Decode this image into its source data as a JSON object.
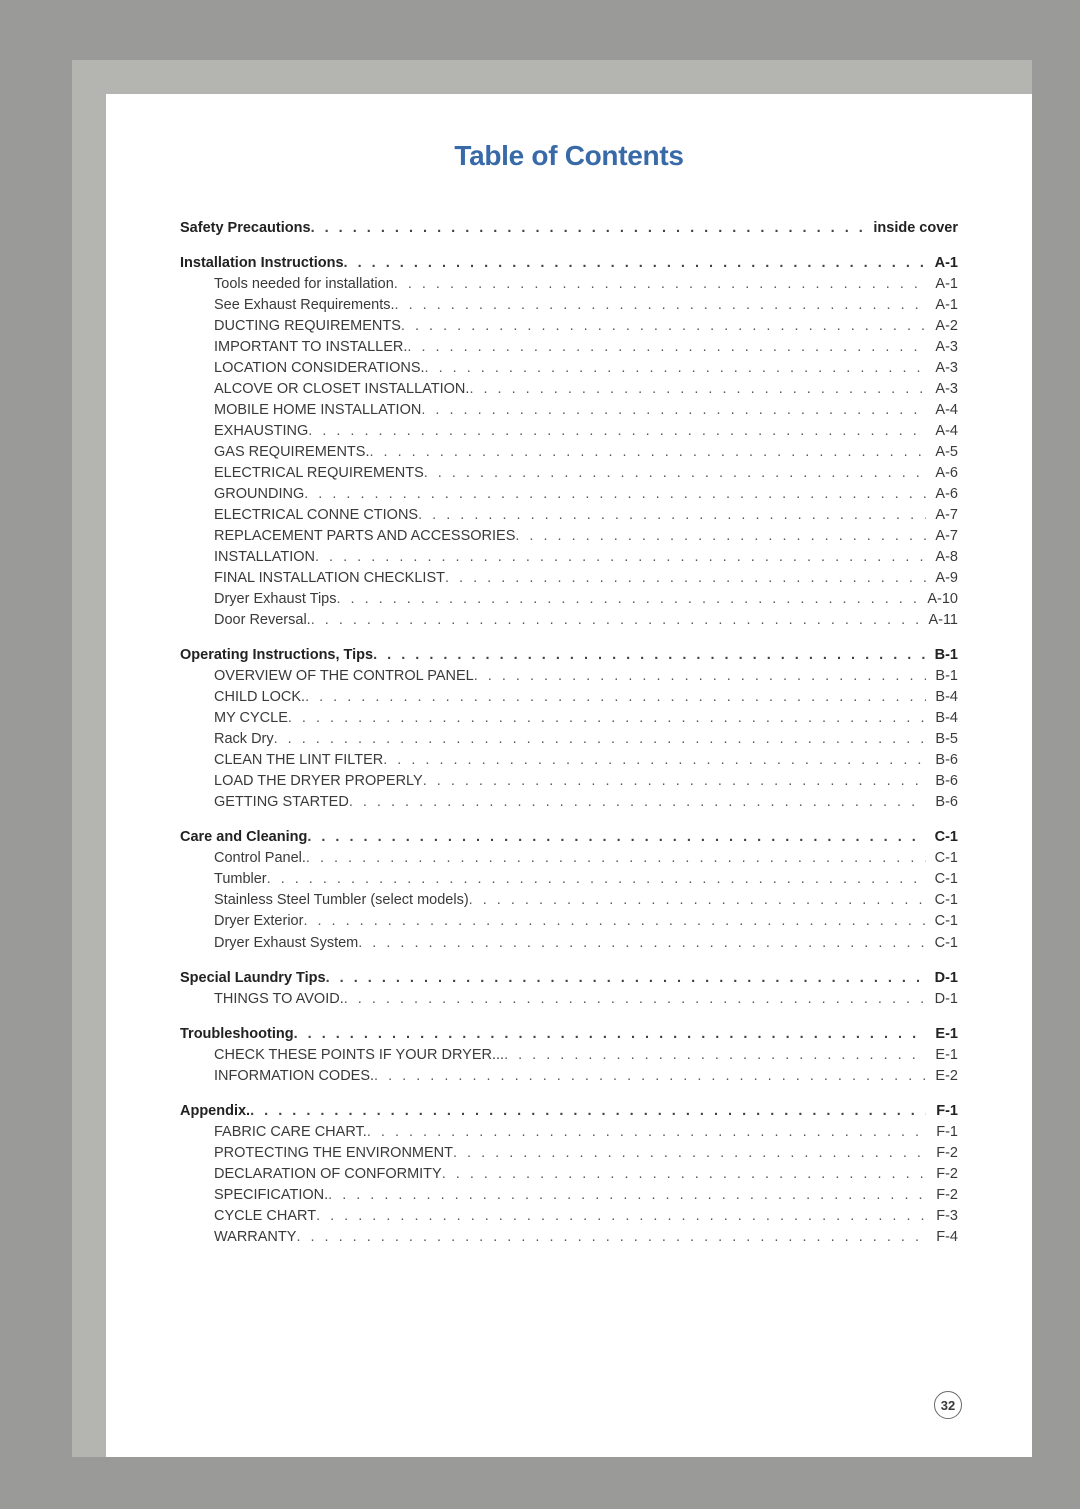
{
  "title": "Table of Contents",
  "title_color": "#386aa8",
  "title_fontsize": 28,
  "body_fontsize": 14.5,
  "background_color": "#9a9a98",
  "band_color": "#b4b4b0",
  "page_color": "#ffffff",
  "text_color": "#3a3a3a",
  "page_number": "32",
  "sections": [
    {
      "header": {
        "label": "Safety Precautions",
        "page": "inside cover"
      },
      "items": []
    },
    {
      "header": {
        "label": "Installation Instructions",
        "page": "A-1"
      },
      "items": [
        {
          "label": "Tools needed for installation",
          "page": "A-1"
        },
        {
          "label": "See Exhaust Requirements.",
          "page": "A-1"
        },
        {
          "label": "DUCTING REQUIREMENTS",
          "page": "A-2"
        },
        {
          "label": "IMPORTANT TO INSTALLER.",
          "page": "A-3"
        },
        {
          "label": "LOCATION CONSIDERATIONS.",
          "page": "A-3"
        },
        {
          "label": "ALCOVE OR CLOSET INSTALLATION.",
          "page": "A-3"
        },
        {
          "label": "MOBILE HOME INSTALLATION",
          "page": "A-4"
        },
        {
          "label": "EXHAUSTING",
          "page": "A-4"
        },
        {
          "label": "GAS REQUIREMENTS.",
          "page": "A-5"
        },
        {
          "label": "ELECTRICAL REQUIREMENTS",
          "page": "A-6"
        },
        {
          "label": "GROUNDING",
          "page": "A-6"
        },
        {
          "label": "ELECTRICAL CONNE CTIONS",
          "page": "A-7"
        },
        {
          "label": "REPLACEMENT PARTS AND ACCESSORIES",
          "page": "A-7"
        },
        {
          "label": "INSTALLATION",
          "page": "A-8"
        },
        {
          "label": "FINAL INSTALLATION CHECKLIST",
          "page": "A-9"
        },
        {
          "label": "Dryer Exhaust Tips",
          "page": "A-10"
        },
        {
          "label": "Door Reversal.",
          "page": "A-11"
        }
      ]
    },
    {
      "header": {
        "label": "Operating Instructions, Tips",
        "page": "B-1"
      },
      "items": [
        {
          "label": "OVERVIEW OF THE CONTROL PANEL",
          "page": "B-1"
        },
        {
          "label": "CHILD LOCK.",
          "page": "B-4"
        },
        {
          "label": "MY CYCLE",
          "page": "B-4"
        },
        {
          "label": "Rack Dry",
          "page": "B-5"
        },
        {
          "label": "CLEAN THE LINT FILTER",
          "page": "B-6"
        },
        {
          "label": "LOAD THE DRYER PROPERLY",
          "page": "B-6"
        },
        {
          "label": "GETTING STARTED",
          "page": "B-6"
        }
      ]
    },
    {
      "header": {
        "label": "Care and Cleaning",
        "page": "C-1"
      },
      "items": [
        {
          "label": "Control Panel.",
          "page": "C-1"
        },
        {
          "label": "Tumbler",
          "page": "C-1"
        },
        {
          "label": "Stainless Steel Tumbler (select models)",
          "page": "C-1"
        },
        {
          "label": "Dryer Exterior",
          "page": "C-1"
        },
        {
          "label": "Dryer Exhaust System",
          "page": "C-1"
        }
      ]
    },
    {
      "header": {
        "label": "Special Laundry Tips",
        "page": "D-1"
      },
      "items": [
        {
          "label": "THINGS TO AVOID.",
          "page": "D-1"
        }
      ]
    },
    {
      "header": {
        "label": "Troubleshooting",
        "page": "E-1"
      },
      "items": [
        {
          "label": "CHECK THESE POINTS IF YOUR DRYER...",
          "page": "E-1"
        },
        {
          "label": "INFORMATION CODES.",
          "page": "E-2"
        }
      ]
    },
    {
      "header": {
        "label": "Appendix.",
        "page": "F-1"
      },
      "items": [
        {
          "label": "FABRIC CARE CHART.",
          "page": "F-1"
        },
        {
          "label": "PROTECTING THE ENVIRONMENT",
          "page": "F-2"
        },
        {
          "label": "DECLARATION OF CONFORMITY",
          "page": "F-2"
        },
        {
          "label": "SPECIFICATION.",
          "page": "F-2"
        },
        {
          "label": "CYCLE CHART",
          "page": "F-3"
        },
        {
          "label": "WARRANTY",
          "page": "F-4"
        }
      ]
    }
  ]
}
